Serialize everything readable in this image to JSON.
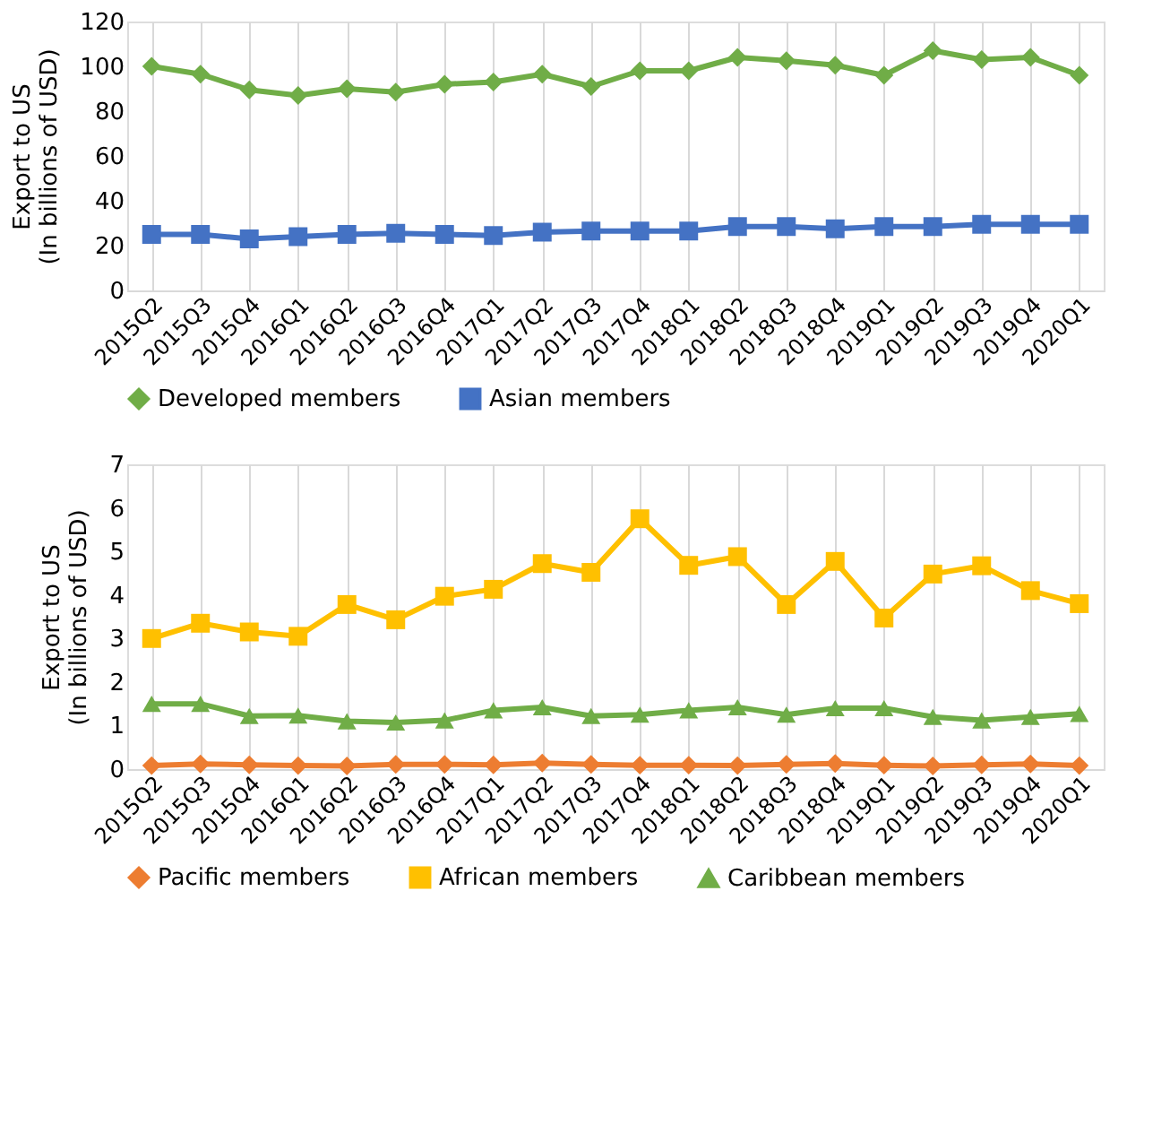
{
  "chart_data": [
    {
      "type": "line",
      "ylabel": "Export to US\n(In billions of USD)",
      "categories": [
        "2015Q2",
        "2015Q3",
        "2015Q4",
        "2016Q1",
        "2016Q2",
        "2016Q3",
        "2016Q4",
        "2017Q1",
        "2017Q2",
        "2017Q3",
        "2017Q4",
        "2018Q1",
        "2018Q2",
        "2018Q3",
        "2018Q4",
        "2019Q1",
        "2019Q2",
        "2019Q3",
        "2019Q4",
        "2020Q1"
      ],
      "ylim": [
        0,
        120
      ],
      "yticks": [
        0,
        20,
        40,
        60,
        80,
        100,
        120
      ],
      "grid": "x",
      "legend": "bottom",
      "line_style": "solid",
      "series": [
        {
          "name": "Developed members",
          "color": "#70ad47",
          "marker": "diamond",
          "values": [
            100,
            96.5,
            89.5,
            87,
            90,
            88.5,
            92,
            93,
            96.5,
            91,
            98,
            98,
            104,
            102.5,
            100.5,
            96,
            107,
            103,
            104,
            96
          ]
        },
        {
          "name": "Asian members",
          "color": "#4472c4",
          "marker": "square",
          "values": [
            25,
            25,
            23,
            24,
            25,
            25.5,
            25,
            24.5,
            26,
            26.5,
            26.5,
            26.5,
            28.5,
            28.5,
            27.5,
            28.5,
            28.5,
            29.5,
            29.5,
            29.5
          ]
        }
      ]
    },
    {
      "type": "line",
      "ylabel": "Export to US\n(In billions of USD)",
      "categories": [
        "2015Q2",
        "2015Q3",
        "2015Q4",
        "2016Q1",
        "2016Q2",
        "2016Q3",
        "2016Q4",
        "2017Q1",
        "2017Q2",
        "2017Q3",
        "2017Q4",
        "2018Q1",
        "2018Q2",
        "2018Q3",
        "2018Q4",
        "2019Q1",
        "2019Q2",
        "2019Q3",
        "2019Q4",
        "2020Q1"
      ],
      "ylim": [
        0,
        7
      ],
      "yticks": [
        0,
        1,
        2,
        3,
        4,
        5,
        6,
        7
      ],
      "grid": "x",
      "legend": "bottom",
      "line_style": "solid",
      "series": [
        {
          "name": "Pacific members",
          "color": "#ed7d31",
          "marker": "diamond",
          "values": [
            0.08,
            0.12,
            0.1,
            0.08,
            0.07,
            0.11,
            0.11,
            0.1,
            0.14,
            0.11,
            0.09,
            0.09,
            0.08,
            0.11,
            0.13,
            0.09,
            0.07,
            0.1,
            0.12,
            0.08
          ]
        },
        {
          "name": "African members",
          "color": "#ffc000",
          "marker": "square",
          "values": [
            3.0,
            3.35,
            3.15,
            3.05,
            3.78,
            3.43,
            3.97,
            4.13,
            4.72,
            4.52,
            5.75,
            4.68,
            4.88,
            3.78,
            4.77,
            3.47,
            4.48,
            4.67,
            4.1,
            3.8
          ]
        },
        {
          "name": "Caribbean members",
          "color": "#70ad47",
          "marker": "triangle",
          "values": [
            1.5,
            1.5,
            1.22,
            1.23,
            1.1,
            1.07,
            1.12,
            1.35,
            1.42,
            1.22,
            1.25,
            1.35,
            1.42,
            1.25,
            1.4,
            1.4,
            1.2,
            1.12,
            1.2,
            1.27
          ]
        }
      ]
    }
  ]
}
